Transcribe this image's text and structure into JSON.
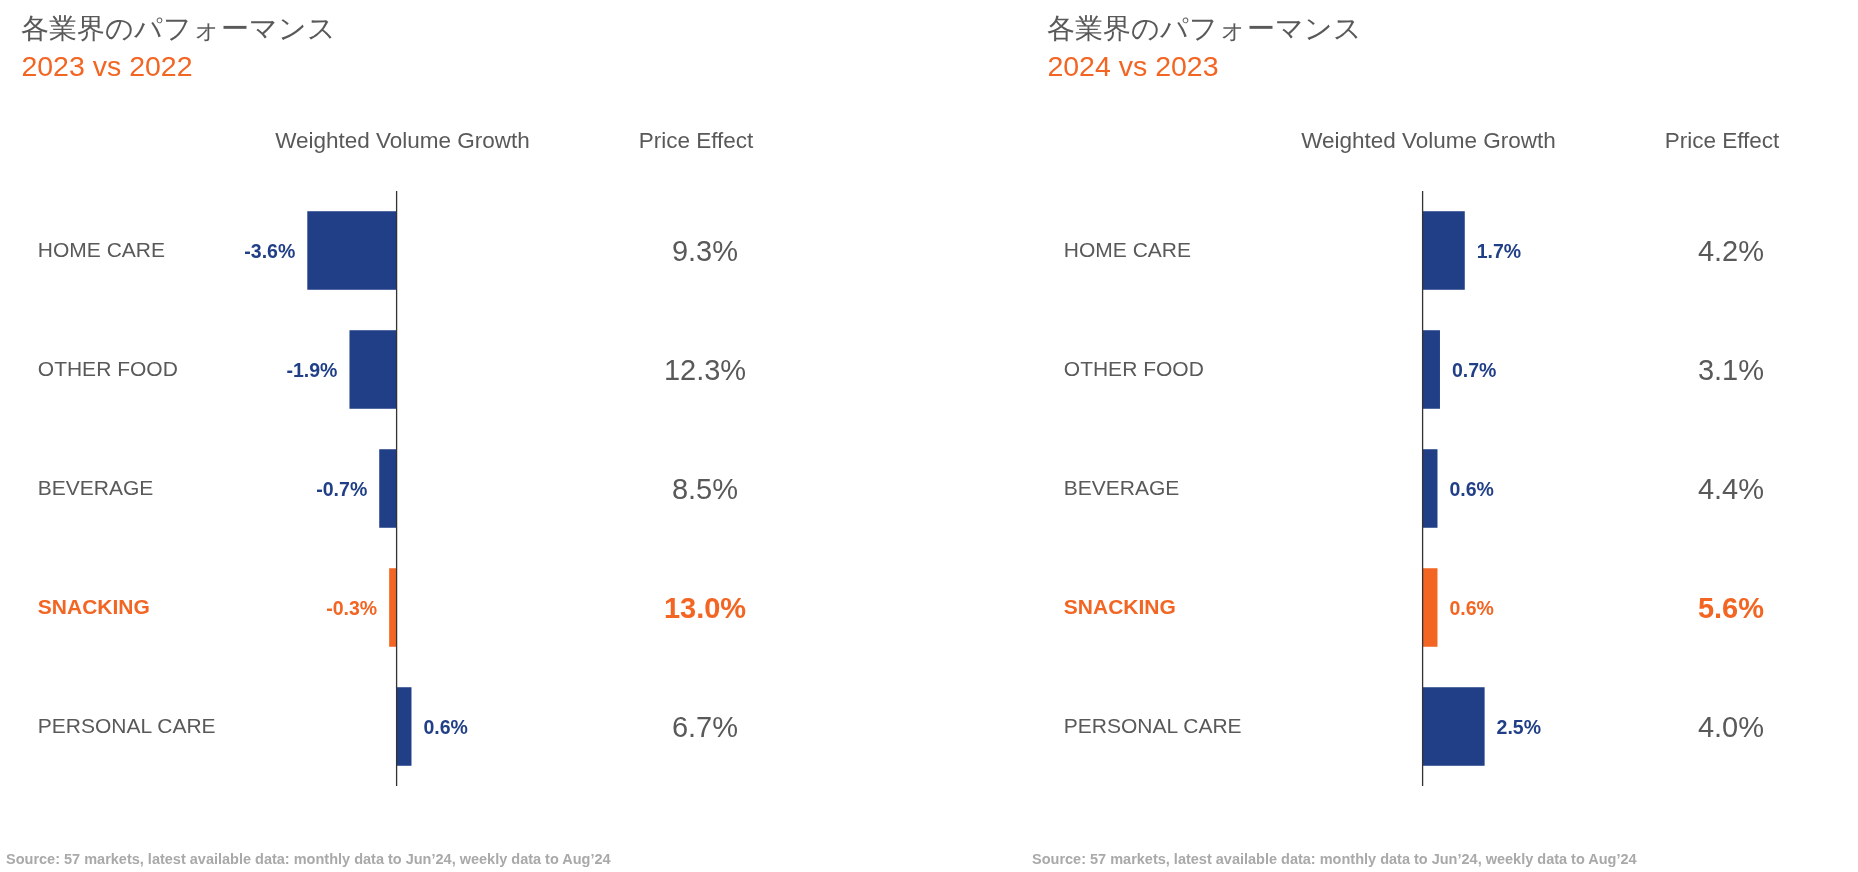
{
  "chart_data": [
    {
      "type": "bar",
      "orientation": "horizontal",
      "title": "各業界のパフォーマンス",
      "subtitle": "2023 vs 2022",
      "xlabel": "Weighted Volume Growth",
      "categories": [
        "HOME CARE",
        "OTHER FOOD",
        "BEVERAGE",
        "SNACKING",
        "PERSONAL CARE"
      ],
      "values": [
        -3.6,
        -1.9,
        -0.7,
        -0.3,
        0.6
      ],
      "colors": [
        "#213f87",
        "#213f87",
        "#213f87",
        "#f26522",
        "#213f87"
      ],
      "value_labels": [
        "-3.6%",
        "-1.9%",
        "-0.7%",
        "-0.3%",
        "0.6%"
      ],
      "annotations": [
        "Source: 57 markets, latest available data: monthly data to Jun’24, weekly data to Aug’24"
      ]
    },
    {
      "type": "other",
      "title": "Price Effect",
      "values": [
        9.3,
        12.3,
        8.5,
        13.0,
        6.7
      ],
      "colors": [
        "#595959",
        "#595959",
        "#595959",
        "#f26522",
        "#595959"
      ],
      "value_labels": [
        "9.3%",
        "12.3%",
        "8.5%",
        "13.0%",
        "6.7%"
      ]
    },
    {
      "type": "bar",
      "orientation": "horizontal",
      "title": "各業界のパフォーマンス",
      "subtitle": "2024 vs 2023",
      "xlabel": "Weighted Volume Growth",
      "categories": [
        "HOME CARE",
        "OTHER FOOD",
        "BEVERAGE",
        "SNACKING",
        "PERSONAL CARE"
      ],
      "values": [
        1.7,
        0.7,
        0.6,
        0.6,
        2.5
      ],
      "colors": [
        "#213f87",
        "#213f87",
        "#213f87",
        "#f26522",
        "#213f87"
      ],
      "value_labels": [
        "1.7%",
        "0.7%",
        "0.6%",
        "0.6%",
        "2.5%"
      ],
      "annotations": [
        "Source: 57 markets, latest available data: monthly data to Jun’24, weekly data to Aug’24"
      ]
    },
    {
      "type": "other",
      "title": "Price Effect",
      "values": [
        4.2,
        3.1,
        4.4,
        5.6,
        4.0
      ],
      "colors": [
        "#595959",
        "#595959",
        "#595959",
        "#f26522",
        "#595959"
      ],
      "value_labels": [
        "4.2%",
        "3.1%",
        "4.4%",
        "5.6%",
        "4.0%"
      ]
    }
  ]
}
